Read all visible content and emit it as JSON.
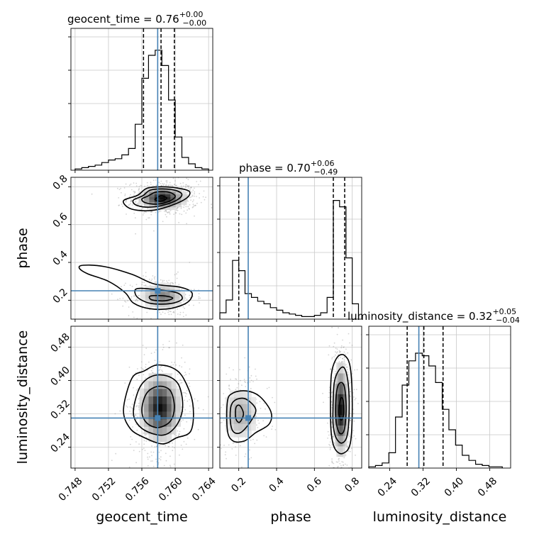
{
  "chart_data": {
    "type": "corner",
    "grid": true,
    "parameters": [
      "geocent_time",
      "phase",
      "luminosity_distance"
    ],
    "axis_labels": {
      "geocent_time": "geocent_time",
      "phase": "phase",
      "luminosity_distance": "luminosity_distance"
    },
    "ranges": {
      "geocent_time": [
        0.7475,
        0.7645
      ],
      "phase": [
        0.1,
        0.85
      ],
      "luminosity_distance": [
        0.19,
        0.53
      ]
    },
    "ticks": {
      "geocent_time": [
        0.748,
        0.752,
        0.756,
        0.76,
        0.764
      ],
      "phase_x": [
        0.2,
        0.4,
        0.6,
        0.8
      ],
      "phase_y": [
        0.2,
        0.4,
        0.6,
        0.8
      ],
      "luminosity_distance_x": [
        0.24,
        0.32,
        0.4,
        0.48
      ],
      "luminosity_distance_y": [
        0.24,
        0.32,
        0.4,
        0.48
      ]
    },
    "tick_labels": {
      "geocent_time": [
        "0.748",
        "0.752",
        "0.756",
        "0.760",
        "0.764"
      ],
      "phase": [
        "0.2",
        "0.4",
        "0.6",
        "0.8"
      ],
      "luminosity_distance": [
        "0.24",
        "0.32",
        "0.40",
        "0.48"
      ]
    },
    "truths": {
      "geocent_time": 0.7579,
      "phase": 0.25,
      "luminosity_distance": 0.31
    },
    "titles": {
      "geocent_time": {
        "prefix": "geocent_time = 0.76",
        "upper": "+0.00",
        "lower": "−0.00"
      },
      "phase": {
        "prefix": "phase = 0.70",
        "upper": "+0.06",
        "lower": "−0.49"
      },
      "luminosity_distance": {
        "prefix": "luminosity_distance = 0.32",
        "upper": "+0.05",
        "lower": "−0.04"
      }
    },
    "quantiles": {
      "geocent_time": [
        0.7562,
        0.7583,
        0.7599
      ],
      "phase": [
        0.2,
        0.7,
        0.76
      ],
      "luminosity_distance": [
        0.282,
        0.322,
        0.368
      ]
    },
    "histograms": {
      "geocent_time": {
        "edges": [
          0.748,
          0.7488,
          0.7496,
          0.7504,
          0.7512,
          0.752,
          0.7528,
          0.7536,
          0.7544,
          0.7552,
          0.756,
          0.7568,
          0.7576,
          0.7584,
          0.7592,
          0.76,
          0.7608,
          0.7616,
          0.7624,
          0.7632,
          0.764
        ],
        "counts": [
          0.01,
          0.02,
          0.03,
          0.04,
          0.06,
          0.08,
          0.09,
          0.12,
          0.17,
          0.36,
          0.72,
          0.9,
          0.94,
          0.82,
          0.55,
          0.26,
          0.1,
          0.05,
          0.02,
          0.01
        ]
      },
      "phase": {
        "edges": [
          0.1,
          0.133,
          0.167,
          0.2,
          0.233,
          0.267,
          0.3,
          0.333,
          0.367,
          0.4,
          0.433,
          0.467,
          0.5,
          0.533,
          0.567,
          0.6,
          0.633,
          0.667,
          0.7,
          0.733,
          0.767,
          0.8,
          0.833
        ],
        "counts": [
          0.05,
          0.15,
          0.46,
          0.38,
          0.2,
          0.17,
          0.14,
          0.12,
          0.09,
          0.07,
          0.05,
          0.04,
          0.03,
          0.02,
          0.02,
          0.03,
          0.05,
          0.17,
          0.93,
          0.88,
          0.48,
          0.12
        ]
      },
      "luminosity_distance": {
        "edges": [
          0.19,
          0.206,
          0.222,
          0.238,
          0.254,
          0.27,
          0.286,
          0.302,
          0.318,
          0.334,
          0.35,
          0.366,
          0.382,
          0.398,
          0.414,
          0.43,
          0.446,
          0.462,
          0.478,
          0.494,
          0.51
        ],
        "counts": [
          0.01,
          0.02,
          0.04,
          0.12,
          0.4,
          0.65,
          0.84,
          0.9,
          0.88,
          0.8,
          0.67,
          0.46,
          0.3,
          0.18,
          0.1,
          0.06,
          0.03,
          0.02,
          0.01,
          0.01
        ]
      }
    },
    "contours": {
      "phase_vs_geocent_time": [
        [
          [
            0.7555,
            0.755
          ],
          [
            0.7566,
            0.792
          ],
          [
            0.7584,
            0.8
          ],
          [
            0.7603,
            0.793
          ],
          [
            0.7617,
            0.775
          ],
          [
            0.7613,
            0.738
          ],
          [
            0.7592,
            0.696
          ],
          [
            0.757,
            0.674
          ],
          [
            0.7547,
            0.683
          ],
          [
            0.7538,
            0.726
          ]
        ],
        [
          [
            0.7561,
            0.752
          ],
          [
            0.757,
            0.782
          ],
          [
            0.7585,
            0.789
          ],
          [
            0.7601,
            0.78
          ],
          [
            0.7608,
            0.758
          ],
          [
            0.7601,
            0.727
          ],
          [
            0.7583,
            0.7
          ],
          [
            0.7565,
            0.692
          ],
          [
            0.7552,
            0.706
          ],
          [
            0.755,
            0.73
          ]
        ],
        [
          [
            0.7567,
            0.75
          ],
          [
            0.7577,
            0.772
          ],
          [
            0.7592,
            0.772
          ],
          [
            0.76,
            0.75
          ],
          [
            0.7593,
            0.724
          ],
          [
            0.7578,
            0.708
          ],
          [
            0.7564,
            0.716
          ],
          [
            0.756,
            0.735
          ]
        ],
        [
          [
            0.7577,
            0.738
          ],
          [
            0.7583,
            0.752
          ],
          [
            0.759,
            0.74
          ],
          [
            0.7583,
            0.724
          ],
          [
            0.7576,
            0.73
          ]
        ],
        [
          [
            0.749,
            0.385
          ],
          [
            0.7515,
            0.378
          ],
          [
            0.7548,
            0.337
          ],
          [
            0.7575,
            0.286
          ],
          [
            0.7605,
            0.27
          ],
          [
            0.762,
            0.24
          ],
          [
            0.7615,
            0.19
          ],
          [
            0.7595,
            0.157
          ],
          [
            0.757,
            0.155
          ],
          [
            0.755,
            0.185
          ],
          [
            0.754,
            0.24
          ],
          [
            0.752,
            0.3
          ],
          [
            0.7495,
            0.34
          ],
          [
            0.7485,
            0.37
          ]
        ],
        [
          [
            0.7555,
            0.262
          ],
          [
            0.758,
            0.255
          ],
          [
            0.7603,
            0.238
          ],
          [
            0.7608,
            0.205
          ],
          [
            0.7594,
            0.182
          ],
          [
            0.7572,
            0.182
          ],
          [
            0.7558,
            0.205
          ],
          [
            0.7552,
            0.235
          ]
        ],
        [
          [
            0.757,
            0.222
          ],
          [
            0.7585,
            0.224
          ],
          [
            0.7597,
            0.212
          ],
          [
            0.7588,
            0.197
          ],
          [
            0.7572,
            0.202
          ]
        ]
      ],
      "luminosity_distance_vs_geocent_time": [
        [
          [
            0.7538,
            0.33
          ],
          [
            0.7548,
            0.405
          ],
          [
            0.7563,
            0.423
          ],
          [
            0.7578,
            0.437
          ],
          [
            0.7597,
            0.43
          ],
          [
            0.761,
            0.405
          ],
          [
            0.7621,
            0.345
          ],
          [
            0.7619,
            0.28
          ],
          [
            0.7601,
            0.262
          ],
          [
            0.7585,
            0.248
          ],
          [
            0.7563,
            0.263
          ],
          [
            0.7546,
            0.285
          ]
        ],
        [
          [
            0.755,
            0.33
          ],
          [
            0.7558,
            0.385
          ],
          [
            0.7572,
            0.41
          ],
          [
            0.759,
            0.411
          ],
          [
            0.7604,
            0.39
          ],
          [
            0.7609,
            0.34
          ],
          [
            0.7603,
            0.297
          ],
          [
            0.7588,
            0.27
          ],
          [
            0.7568,
            0.276
          ],
          [
            0.7554,
            0.298
          ]
        ],
        [
          [
            0.756,
            0.33
          ],
          [
            0.7566,
            0.37
          ],
          [
            0.758,
            0.386
          ],
          [
            0.7594,
            0.376
          ],
          [
            0.7599,
            0.336
          ],
          [
            0.7594,
            0.302
          ],
          [
            0.7579,
            0.287
          ],
          [
            0.7565,
            0.3
          ]
        ]
      ],
      "luminosity_distance_vs_phase": [
        [
          [
            0.14,
            0.35
          ],
          [
            0.17,
            0.37
          ],
          [
            0.24,
            0.375
          ],
          [
            0.31,
            0.362
          ],
          [
            0.37,
            0.325
          ],
          [
            0.36,
            0.295
          ],
          [
            0.29,
            0.275
          ],
          [
            0.23,
            0.255
          ],
          [
            0.17,
            0.255
          ],
          [
            0.14,
            0.28
          ]
        ],
        [
          [
            0.16,
            0.34
          ],
          [
            0.19,
            0.355
          ],
          [
            0.24,
            0.355
          ],
          [
            0.29,
            0.33
          ],
          [
            0.26,
            0.3
          ],
          [
            0.21,
            0.275
          ],
          [
            0.17,
            0.278
          ],
          [
            0.155,
            0.305
          ]
        ],
        [
          [
            0.185,
            0.335
          ],
          [
            0.205,
            0.34
          ],
          [
            0.225,
            0.32
          ],
          [
            0.205,
            0.3
          ],
          [
            0.185,
            0.308
          ]
        ],
        [
          [
            0.685,
            0.33
          ],
          [
            0.69,
            0.415
          ],
          [
            0.72,
            0.455
          ],
          [
            0.76,
            0.46
          ],
          [
            0.79,
            0.43
          ],
          [
            0.8,
            0.34
          ],
          [
            0.79,
            0.25
          ],
          [
            0.75,
            0.225
          ],
          [
            0.71,
            0.235
          ],
          [
            0.69,
            0.27
          ]
        ],
        [
          [
            0.698,
            0.33
          ],
          [
            0.705,
            0.395
          ],
          [
            0.73,
            0.425
          ],
          [
            0.758,
            0.43
          ],
          [
            0.778,
            0.395
          ],
          [
            0.784,
            0.33
          ],
          [
            0.773,
            0.268
          ],
          [
            0.745,
            0.25
          ],
          [
            0.715,
            0.262
          ],
          [
            0.7,
            0.29
          ]
        ],
        [
          [
            0.712,
            0.33
          ],
          [
            0.72,
            0.38
          ],
          [
            0.74,
            0.395
          ],
          [
            0.76,
            0.382
          ],
          [
            0.768,
            0.33
          ],
          [
            0.758,
            0.282
          ],
          [
            0.735,
            0.273
          ],
          [
            0.717,
            0.295
          ]
        ],
        [
          [
            0.73,
            0.335
          ],
          [
            0.74,
            0.358
          ],
          [
            0.752,
            0.352
          ],
          [
            0.755,
            0.32
          ],
          [
            0.742,
            0.305
          ],
          [
            0.73,
            0.318
          ]
        ]
      ]
    },
    "density_peaks": {
      "phase_vs_geocent_time": [
        {
          "x": 0.7585,
          "y": 0.74,
          "sx": 0.0014,
          "sy": 0.03,
          "w": 1.0
        },
        {
          "x": 0.7585,
          "y": 0.22,
          "sx": 0.0013,
          "sy": 0.035,
          "w": 0.55
        }
      ],
      "luminosity_distance_vs_geocent_time": [
        {
          "x": 0.7582,
          "y": 0.335,
          "sx": 0.0012,
          "sy": 0.04,
          "w": 1.0
        }
      ],
      "luminosity_distance_vs_phase": [
        {
          "x": 0.74,
          "y": 0.33,
          "sx": 0.02,
          "sy": 0.055,
          "w": 1.0
        },
        {
          "x": 0.21,
          "y": 0.32,
          "sx": 0.05,
          "sy": 0.035,
          "w": 0.35
        }
      ]
    }
  }
}
